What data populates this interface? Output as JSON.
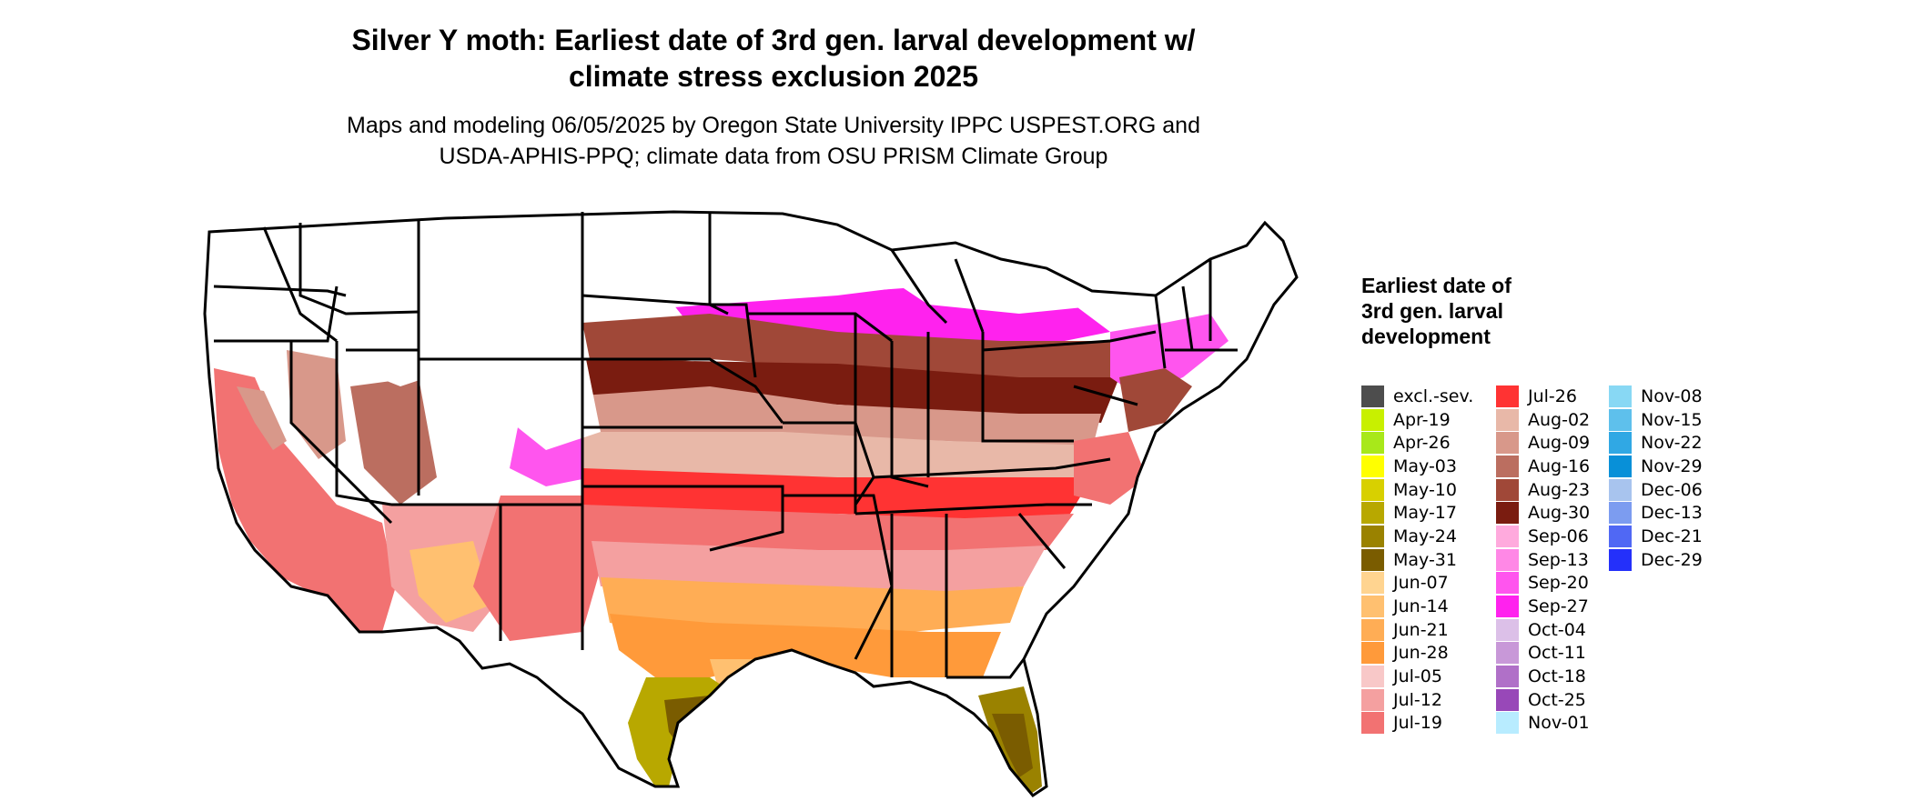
{
  "header": {
    "title_line1": "Silver Y moth: Earliest date of 3rd gen. larval development w/",
    "title_line2": "climate stress exclusion 2025",
    "subtitle_line1": "Maps and modeling 06/05/2025 by Oregon State University IPPC USPEST.ORG and",
    "subtitle_line2": "USDA-APHIS-PPQ; climate data from OSU PRISM Climate Group"
  },
  "legend": {
    "title": "Earliest date of 3rd gen. larval development",
    "items": [
      {
        "label": "excl.-sev.",
        "color": "#4d4d4d"
      },
      {
        "label": "Apr-19",
        "color": "#c8f000"
      },
      {
        "label": "Apr-26",
        "color": "#a8e81a"
      },
      {
        "label": "May-03",
        "color": "#ffff00"
      },
      {
        "label": "May-10",
        "color": "#d8d000"
      },
      {
        "label": "May-17",
        "color": "#b8a800"
      },
      {
        "label": "May-24",
        "color": "#9a8200"
      },
      {
        "label": "May-31",
        "color": "#7a5c00"
      },
      {
        "label": "Jun-07",
        "color": "#ffd490"
      },
      {
        "label": "Jun-14",
        "color": "#ffc070"
      },
      {
        "label": "Jun-21",
        "color": "#ffad55"
      },
      {
        "label": "Jun-28",
        "color": "#ff9a3a"
      },
      {
        "label": "Jul-05",
        "color": "#f8c8c8"
      },
      {
        "label": "Jul-12",
        "color": "#f4a0a0"
      },
      {
        "label": "Jul-19",
        "color": "#f27272"
      },
      {
        "label": "Jul-26",
        "color": "#ff3333"
      },
      {
        "label": "Aug-02",
        "color": "#e8b8a8"
      },
      {
        "label": "Aug-09",
        "color": "#d8988a"
      },
      {
        "label": "Aug-16",
        "color": "#bb6e60"
      },
      {
        "label": "Aug-23",
        "color": "#a04838"
      },
      {
        "label": "Aug-30",
        "color": "#7a1c10"
      },
      {
        "label": "Sep-06",
        "color": "#ffaadd"
      },
      {
        "label": "Sep-13",
        "color": "#ff88e6"
      },
      {
        "label": "Sep-20",
        "color": "#ff55ee"
      },
      {
        "label": "Sep-27",
        "color": "#ff22ee"
      },
      {
        "label": "Oct-04",
        "color": "#dcc0e8"
      },
      {
        "label": "Oct-11",
        "color": "#c898d8"
      },
      {
        "label": "Oct-18",
        "color": "#b070c8"
      },
      {
        "label": "Oct-25",
        "color": "#9848b8"
      },
      {
        "label": "Nov-01",
        "color": "#b8ecff"
      },
      {
        "label": "Nov-08",
        "color": "#88d8f4"
      },
      {
        "label": "Nov-15",
        "color": "#5ec0ec"
      },
      {
        "label": "Nov-22",
        "color": "#30a8e4"
      },
      {
        "label": "Nov-29",
        "color": "#0890d8"
      },
      {
        "label": "Dec-06",
        "color": "#a8c4ee"
      },
      {
        "label": "Dec-13",
        "color": "#7c9cf0"
      },
      {
        "label": "Dec-21",
        "color": "#5068f4"
      },
      {
        "label": "Dec-29",
        "color": "#2430fa"
      }
    ]
  }
}
